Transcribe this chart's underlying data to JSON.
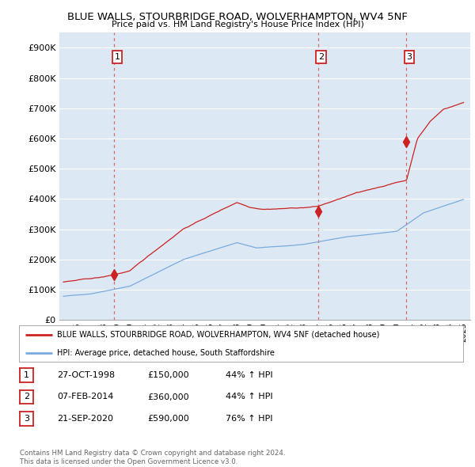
{
  "title": "BLUE WALLS, STOURBRIDGE ROAD, WOLVERHAMPTON, WV4 5NF",
  "subtitle": "Price paid vs. HM Land Registry's House Price Index (HPI)",
  "yticks": [
    0,
    100000,
    200000,
    300000,
    400000,
    500000,
    600000,
    700000,
    800000,
    900000
  ],
  "ytick_labels": [
    "£0",
    "£100K",
    "£200K",
    "£300K",
    "£400K",
    "£500K",
    "£600K",
    "£700K",
    "£800K",
    "£900K"
  ],
  "ylim": [
    0,
    950000
  ],
  "background_color": "#ffffff",
  "plot_bg_color": "#dce9f5",
  "grid_color": "#ffffff",
  "red_line_color": "#cc2222",
  "blue_line_color": "#7aaadd",
  "vline_color": "#dd6666",
  "sale_points": [
    {
      "year": 1998.82,
      "price": 150000,
      "label": "1"
    },
    {
      "year": 2014.09,
      "price": 360000,
      "label": "2"
    },
    {
      "year": 2020.72,
      "price": 590000,
      "label": "3"
    }
  ],
  "vline_years": [
    1998.82,
    2014.09,
    2020.72
  ],
  "legend_red_label": "BLUE WALLS, STOURBRIDGE ROAD, WOLVERHAMPTON, WV4 5NF (detached house)",
  "legend_blue_label": "HPI: Average price, detached house, South Staffordshire",
  "table_rows": [
    [
      "1",
      "27-OCT-1998",
      "£150,000",
      "44% ↑ HPI"
    ],
    [
      "2",
      "07-FEB-2014",
      "£360,000",
      "44% ↑ HPI"
    ],
    [
      "3",
      "21-SEP-2020",
      "£590,000",
      "76% ↑ HPI"
    ]
  ],
  "footnote": "Contains HM Land Registry data © Crown copyright and database right 2024.\nThis data is licensed under the Open Government Licence v3.0."
}
